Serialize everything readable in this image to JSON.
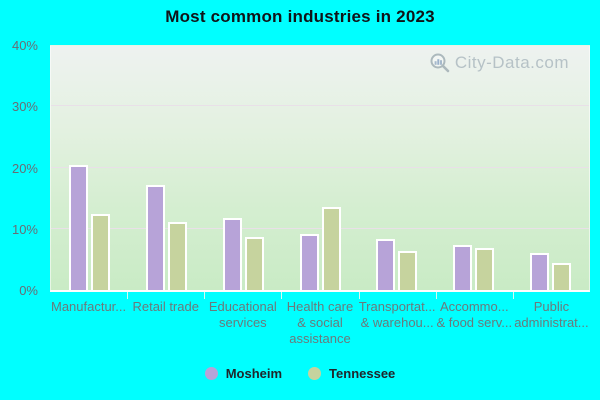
{
  "title": "Most common industries in 2023",
  "watermark": "City-Data.com",
  "colors": {
    "page_background": "#00ffff",
    "mosheim_bar": "#b7a3d8",
    "tennessee_bar": "#c6d39e",
    "gridline": "#e9e0e8",
    "axis_text": "#6a7a7c",
    "title_text": "#101418",
    "legend_text": "#20262b",
    "watermark_text": "#a4b2ba"
  },
  "chart_data": {
    "type": "bar",
    "title": "Most common industries in 2023",
    "categories": [
      "Manufactur...",
      "Retail trade",
      "Educational services",
      "Health care & social assistance",
      "Transportat... & warehou...",
      "Accommo... & food serv...",
      "Public administrat..."
    ],
    "category_display_lines": [
      [
        "Manufactur..."
      ],
      [
        "Retail trade"
      ],
      [
        "Educational",
        "services"
      ],
      [
        "Health care",
        "& social",
        "assistance"
      ],
      [
        "Transportat...",
        "& warehou..."
      ],
      [
        "Accommo...",
        "& food serv..."
      ],
      [
        "Public",
        "administrat..."
      ]
    ],
    "series": [
      {
        "name": "Mosheim",
        "color": "#b7a3d8",
        "values": [
          20.4,
          17.2,
          11.7,
          9.2,
          8.3,
          7.4,
          6.0
        ]
      },
      {
        "name": "Tennessee",
        "color": "#c6d39e",
        "values": [
          12.4,
          11.1,
          8.6,
          13.6,
          6.3,
          6.8,
          4.4
        ]
      }
    ],
    "xlabel": "",
    "ylabel": "",
    "y_ticks_pct": [
      0,
      10,
      20,
      30,
      40
    ],
    "y_tick_labels": [
      "0%",
      "10%",
      "20%",
      "30%",
      "40%"
    ],
    "ylim": [
      0,
      40
    ],
    "grid": true,
    "legend_position": "bottom-center"
  }
}
